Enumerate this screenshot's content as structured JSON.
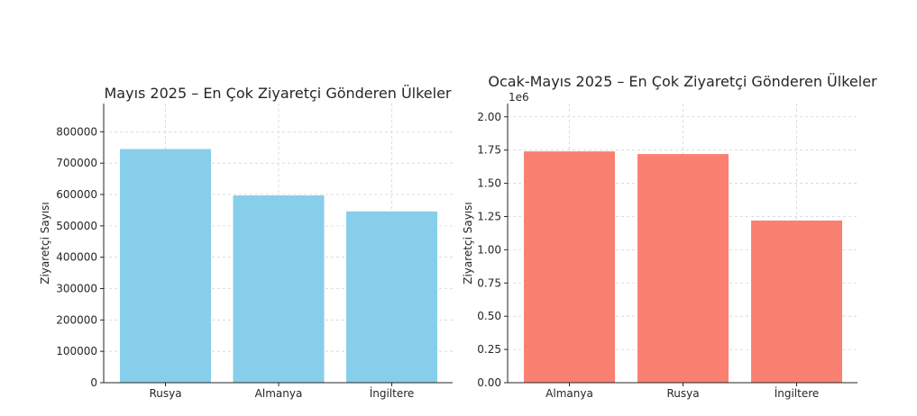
{
  "chart_data": [
    {
      "type": "bar",
      "title": "Mayıs 2025 – En Çok Ziyaretçi Gönderen Ülkeler",
      "xlabel": "",
      "ylabel": "Ziyaretçi Sayısı",
      "categories": [
        "Rusya",
        "Almanya",
        "İngiltere"
      ],
      "values": [
        745000,
        597000,
        546000
      ],
      "ylim": [
        0,
        890000
      ],
      "yticks": [
        0,
        100000,
        200000,
        300000,
        400000,
        500000,
        600000,
        700000,
        800000
      ],
      "ytick_labels": [
        "0",
        "100000",
        "200000",
        "300000",
        "400000",
        "500000",
        "600000",
        "700000",
        "800000"
      ],
      "grid": true,
      "color": "#87CEEB"
    },
    {
      "type": "bar",
      "title": "Ocak-Mayıs 2025 – En Çok Ziyaretçi Gönderen Ülkeler",
      "xlabel": "",
      "ylabel": "Ziyaretçi Sayısı",
      "axis_offset_label": "1e6",
      "categories": [
        "Almanya",
        "Rusya",
        "İngiltere"
      ],
      "values": [
        1.74,
        1.72,
        1.22
      ],
      "ylim": [
        0,
        2.1
      ],
      "yticks": [
        0,
        0.25,
        0.5,
        0.75,
        1.0,
        1.25,
        1.5,
        1.75,
        2.0
      ],
      "ytick_labels": [
        "0.00",
        "0.25",
        "0.50",
        "0.75",
        "1.00",
        "1.25",
        "1.50",
        "1.75",
        "2.00"
      ],
      "grid": true,
      "color": "#FA8072"
    }
  ]
}
